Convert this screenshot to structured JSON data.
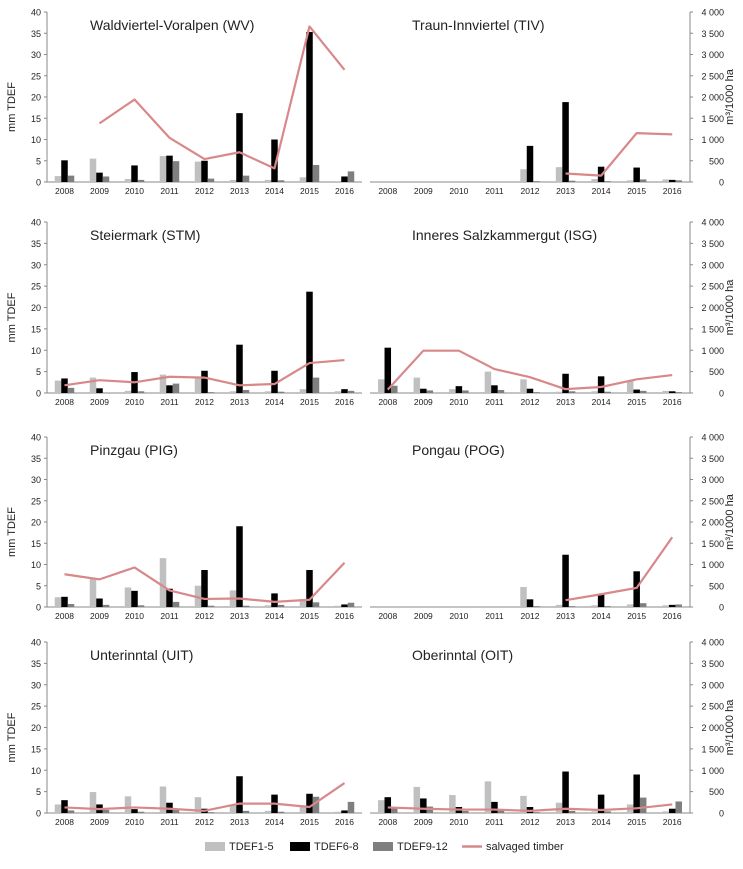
{
  "colors": {
    "tdef1": "#c0c0c0",
    "tdef6": "#000000",
    "tdef9": "#7f7f7f",
    "timber": "#d9888a",
    "axis": "#888888"
  },
  "axis_labels": {
    "left": "mm TDEF",
    "right": "m³/1000 ha"
  },
  "left_ticks": [
    "0",
    "5",
    "10",
    "15",
    "20",
    "25",
    "30",
    "35",
    "40"
  ],
  "right_ticks": [
    "0",
    "500",
    "1 000",
    "1 500",
    "2 000",
    "2 500",
    "3 000",
    "3 500",
    "4 000"
  ],
  "legend": [
    {
      "key": "tdef1",
      "label": "TDEF1-5",
      "kind": "bar"
    },
    {
      "key": "tdef6",
      "label": "TDEF6-8",
      "kind": "bar"
    },
    {
      "key": "tdef9",
      "label": "TDEF9-12",
      "kind": "bar"
    },
    {
      "key": "timber",
      "label": "salvaged timber",
      "kind": "line"
    }
  ],
  "chart_data": [
    {
      "type": "bar",
      "title": "Waldviertel-Voralpen (WV)",
      "categories": [
        "2008",
        "2009",
        "2010",
        "2011",
        "2012",
        "2013",
        "2014",
        "2015",
        "2016"
      ],
      "ylabel": "mm TDEF",
      "ylim": [
        0,
        40
      ],
      "y2label": "m³/1000 ha",
      "y2lim": [
        0,
        4000
      ],
      "series": [
        {
          "name": "TDEF1-5",
          "values": [
            1.4,
            5.5,
            0.7,
            6.1,
            4.8,
            0.5,
            0.5,
            1.1,
            0.2
          ]
        },
        {
          "name": "TDEF6-8",
          "values": [
            5.1,
            2.2,
            3.9,
            6.2,
            5.0,
            16.2,
            10.0,
            35.3,
            1.3
          ]
        },
        {
          "name": "TDEF9-12",
          "values": [
            1.5,
            1.3,
            0.5,
            4.9,
            0.8,
            1.5,
            0.4,
            4.0,
            2.5
          ]
        }
      ],
      "line": {
        "name": "salvaged timber",
        "values": [
          null,
          1380,
          1940,
          1040,
          540,
          700,
          320,
          3660,
          2640
        ]
      }
    },
    {
      "type": "bar",
      "title": "Traun-Innviertel (TIV)",
      "categories": [
        "2008",
        "2009",
        "2010",
        "2011",
        "2012",
        "2013",
        "2014",
        "2015",
        "2016"
      ],
      "ylabel": "mm TDEF",
      "ylim": [
        0,
        40
      ],
      "y2label": "m³/1000 ha",
      "y2lim": [
        0,
        4000
      ],
      "series": [
        {
          "name": "TDEF1-5",
          "values": [
            null,
            null,
            null,
            null,
            3.0,
            3.5,
            0.7,
            0.4,
            0.6
          ]
        },
        {
          "name": "TDEF6-8",
          "values": [
            null,
            null,
            null,
            null,
            8.5,
            18.8,
            3.6,
            3.4,
            0.5
          ]
        },
        {
          "name": "TDEF9-12",
          "values": [
            null,
            null,
            null,
            null,
            0.2,
            0.3,
            0.2,
            0.6,
            0.4
          ]
        }
      ],
      "line": {
        "name": "salvaged timber",
        "values": [
          null,
          null,
          null,
          null,
          null,
          200,
          150,
          1150,
          1120
        ]
      }
    },
    {
      "type": "bar",
      "title": "Steiermark (STM)",
      "categories": [
        "2008",
        "2009",
        "2010",
        "2011",
        "2012",
        "2013",
        "2014",
        "2015",
        "2016"
      ],
      "ylabel": "mm TDEF",
      "ylim": [
        0,
        40
      ],
      "y2label": "m³/1000 ha",
      "y2lim": [
        0,
        4000
      ],
      "series": [
        {
          "name": "TDEF1-5",
          "values": [
            2.9,
            3.6,
            0.5,
            4.3,
            3.8,
            0.4,
            0.4,
            0.9,
            0.4
          ]
        },
        {
          "name": "TDEF6-8",
          "values": [
            3.4,
            1.1,
            4.9,
            1.8,
            5.2,
            11.3,
            5.2,
            23.7,
            0.9
          ]
        },
        {
          "name": "TDEF9-12",
          "values": [
            1.2,
            0.1,
            0.4,
            2.2,
            0.2,
            0.7,
            0.3,
            3.6,
            0.5
          ]
        }
      ],
      "line": {
        "name": "salvaged timber",
        "values": [
          180,
          300,
          250,
          380,
          360,
          180,
          210,
          700,
          770
        ]
      }
    },
    {
      "type": "bar",
      "title": "Inneres Salzkammergut (ISG)",
      "categories": [
        "2008",
        "2009",
        "2010",
        "2011",
        "2012",
        "2013",
        "2014",
        "2015",
        "2016"
      ],
      "ylabel": "mm TDEF",
      "ylim": [
        0,
        40
      ],
      "y2label": "m³/1000 ha",
      "y2lim": [
        0,
        4000
      ],
      "series": [
        {
          "name": "TDEF1-5",
          "values": [
            3.2,
            3.6,
            0.9,
            5.0,
            3.2,
            0.3,
            0.4,
            2.9,
            0.5
          ]
        },
        {
          "name": "TDEF6-8",
          "values": [
            10.6,
            1.0,
            1.6,
            1.8,
            1.0,
            4.5,
            3.9,
            0.8,
            0.4
          ]
        },
        {
          "name": "TDEF9-12",
          "values": [
            1.7,
            0.6,
            0.6,
            0.7,
            0.2,
            0.4,
            0.3,
            0.5,
            0.2
          ]
        }
      ],
      "line": {
        "name": "salvaged timber",
        "values": [
          80,
          990,
          990,
          560,
          370,
          90,
          140,
          320,
          420
        ]
      }
    },
    {
      "type": "bar",
      "title": "Pinzgau (PIG)",
      "categories": [
        "2008",
        "2009",
        "2010",
        "2011",
        "2012",
        "2013",
        "2014",
        "2015",
        "2016"
      ],
      "ylabel": "mm TDEF",
      "ylim": [
        0,
        40
      ],
      "y2label": "m³/1000 ha",
      "y2lim": [
        0,
        4000
      ],
      "series": [
        {
          "name": "TDEF1-5",
          "values": [
            2.3,
            6.6,
            4.6,
            11.5,
            5.0,
            3.9,
            0.4,
            1.9,
            0.3
          ]
        },
        {
          "name": "TDEF6-8",
          "values": [
            2.4,
            2.0,
            3.8,
            4.3,
            8.7,
            19.0,
            3.2,
            8.7,
            0.6
          ]
        },
        {
          "name": "TDEF9-12",
          "values": [
            0.7,
            0.5,
            0.4,
            1.2,
            0.3,
            0.3,
            0.5,
            1.1,
            1.0
          ]
        }
      ],
      "line": {
        "name": "salvaged timber",
        "values": [
          770,
          650,
          930,
          390,
          190,
          200,
          120,
          170,
          1040
        ]
      }
    },
    {
      "type": "bar",
      "title": "Pongau (POG)",
      "categories": [
        "2008",
        "2009",
        "2010",
        "2011",
        "2012",
        "2013",
        "2014",
        "2015",
        "2016"
      ],
      "ylabel": "mm TDEF",
      "ylim": [
        0,
        40
      ],
      "y2label": "m³/1000 ha",
      "y2lim": [
        0,
        4000
      ],
      "series": [
        {
          "name": "TDEF1-5",
          "values": [
            null,
            null,
            null,
            null,
            4.7,
            0.5,
            0.4,
            0.6,
            0.4
          ]
        },
        {
          "name": "TDEF6-8",
          "values": [
            null,
            null,
            null,
            null,
            1.8,
            12.3,
            2.9,
            8.4,
            0.5
          ]
        },
        {
          "name": "TDEF9-12",
          "values": [
            null,
            null,
            null,
            null,
            0.2,
            0.2,
            0.2,
            0.9,
            0.6
          ]
        }
      ],
      "line": {
        "name": "salvaged timber",
        "values": [
          null,
          null,
          null,
          null,
          null,
          160,
          300,
          450,
          1640
        ]
      }
    },
    {
      "type": "bar",
      "title": "Unterinntal (UIT)",
      "categories": [
        "2008",
        "2009",
        "2010",
        "2011",
        "2012",
        "2013",
        "2014",
        "2015",
        "2016"
      ],
      "ylabel": "mm TDEF",
      "ylim": [
        0,
        40
      ],
      "y2label": "m³/1000 ha",
      "y2lim": [
        0,
        4000
      ],
      "series": [
        {
          "name": "TDEF1-5",
          "values": [
            2.0,
            4.9,
            3.9,
            6.2,
            3.7,
            1.9,
            0.5,
            1.8,
            0.3
          ]
        },
        {
          "name": "TDEF6-8",
          "values": [
            3.0,
            2.0,
            0.9,
            2.4,
            1.0,
            8.6,
            4.3,
            4.5,
            0.6
          ]
        },
        {
          "name": "TDEF9-12",
          "values": [
            0.6,
            0.7,
            0.3,
            0.7,
            0.2,
            0.5,
            0.3,
            3.8,
            2.6
          ]
        }
      ],
      "line": {
        "name": "salvaged timber",
        "values": [
          130,
          90,
          130,
          100,
          50,
          220,
          220,
          140,
          700
        ]
      }
    },
    {
      "type": "bar",
      "title": "Oberinntal (OIT)",
      "categories": [
        "2008",
        "2009",
        "2010",
        "2011",
        "2012",
        "2013",
        "2014",
        "2015",
        "2016"
      ],
      "ylabel": "mm TDEF",
      "ylim": [
        0,
        40
      ],
      "y2label": "m³/1000 ha",
      "y2lim": [
        0,
        4000
      ],
      "series": [
        {
          "name": "TDEF1-5",
          "values": [
            3.0,
            6.1,
            4.2,
            7.4,
            4.0,
            2.4,
            0.4,
            2.0,
            0.4
          ]
        },
        {
          "name": "TDEF6-8",
          "values": [
            3.7,
            3.4,
            1.4,
            2.6,
            1.4,
            9.7,
            4.3,
            9.0,
            1.0
          ]
        },
        {
          "name": "TDEF9-12",
          "values": [
            1.2,
            1.5,
            0.5,
            0.7,
            0.2,
            0.5,
            0.4,
            3.6,
            2.7
          ]
        }
      ],
      "line": {
        "name": "salvaged timber",
        "values": [
          130,
          100,
          80,
          80,
          50,
          100,
          70,
          110,
          200
        ]
      }
    }
  ]
}
